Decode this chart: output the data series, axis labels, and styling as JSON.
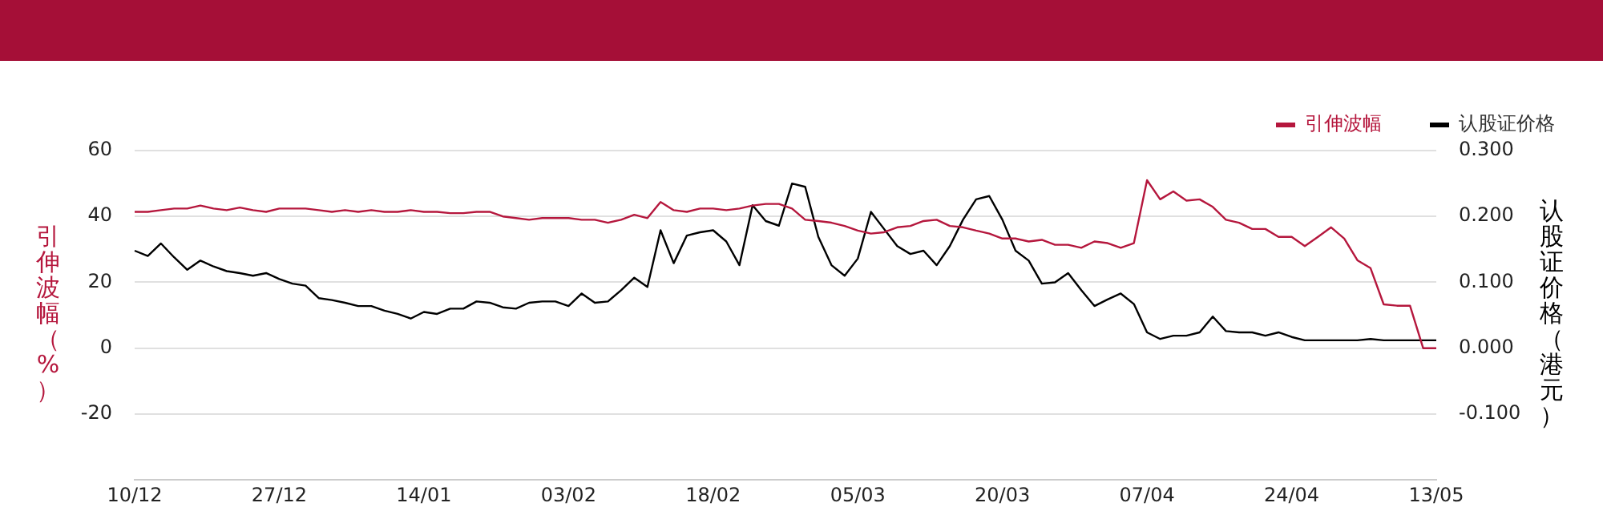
{
  "chart_data": {
    "type": "line",
    "categories": [
      "10/12",
      null,
      null,
      null,
      null,
      null,
      null,
      null,
      null,
      null,
      null,
      "27/12",
      null,
      null,
      null,
      null,
      null,
      null,
      null,
      null,
      null,
      null,
      "14/01",
      null,
      null,
      null,
      null,
      null,
      null,
      null,
      null,
      null,
      null,
      "03/02",
      null,
      null,
      null,
      null,
      null,
      null,
      null,
      null,
      null,
      null,
      "18/02",
      null,
      null,
      null,
      null,
      null,
      null,
      null,
      null,
      null,
      null,
      "05/03",
      null,
      null,
      null,
      null,
      null,
      null,
      null,
      null,
      null,
      null,
      "20/03",
      null,
      null,
      null,
      null,
      null,
      null,
      null,
      null,
      null,
      null,
      "07/04",
      null,
      null,
      null,
      null,
      null,
      null,
      null,
      null,
      null,
      null,
      "24/04",
      null,
      null,
      null,
      null,
      null,
      null,
      null,
      null,
      null,
      null,
      "13/05"
    ],
    "series": [
      {
        "name": "引伸波幅",
        "color": "#b5173d",
        "values": [
          41.4,
          41.4,
          41.9,
          42.4,
          42.4,
          43.3,
          42.4,
          41.9,
          42.7,
          41.9,
          41.4,
          42.4,
          42.4,
          42.4,
          41.9,
          41.4,
          41.9,
          41.4,
          41.9,
          41.4,
          41.4,
          41.9,
          41.4,
          41.4,
          41,
          41,
          41.4,
          41.4,
          40,
          39.5,
          39,
          39.5,
          39.5,
          39.5,
          39,
          39,
          38.1,
          39,
          40.5,
          39.5,
          44.4,
          41.9,
          41.4,
          42.4,
          42.4,
          41.9,
          42.4,
          43.3,
          43.8,
          43.8,
          42.4,
          39,
          38.6,
          38.1,
          37.1,
          35.7,
          34.8,
          35.2,
          36.7,
          37.1,
          38.6,
          39,
          37.1,
          36.7,
          35.7,
          34.8,
          33.3,
          33.3,
          32.4,
          32.9,
          31.4,
          31.4,
          30.5,
          32.4,
          31.9,
          30.5,
          31.9,
          51,
          45.2,
          47.6,
          44.8,
          45.2,
          42.9,
          39,
          38.1,
          36.2,
          36.2,
          33.8,
          33.8,
          31,
          33.8,
          36.7,
          33.3,
          26.7,
          24.3,
          13.3,
          12.9,
          12.9,
          0,
          0
        ]
      },
      {
        "name": "认股证价格",
        "color": "#000000",
        "axis": "y2",
        "values": [
          0.148,
          0.14,
          0.159,
          0.138,
          0.119,
          0.133,
          0.124,
          0.117,
          0.114,
          0.11,
          0.114,
          0.105,
          0.098,
          0.095,
          0.076,
          0.073,
          0.069,
          0.064,
          0.064,
          0.057,
          0.052,
          0.045,
          0.055,
          0.052,
          0.06,
          0.06,
          0.071,
          0.069,
          0.062,
          0.06,
          0.069,
          0.071,
          0.071,
          0.064,
          0.083,
          0.069,
          0.071,
          0.088,
          0.107,
          0.093,
          0.179,
          0.129,
          0.171,
          0.176,
          0.179,
          0.162,
          0.126,
          0.217,
          0.193,
          0.186,
          0.25,
          0.245,
          0.169,
          0.126,
          0.11,
          0.136,
          0.207,
          0.181,
          0.155,
          0.143,
          0.148,
          0.126,
          0.155,
          0.195,
          0.226,
          0.231,
          0.195,
          0.148,
          0.133,
          0.098,
          0.1,
          0.114,
          0.088,
          0.064,
          0.074,
          0.083,
          0.067,
          0.024,
          0.014,
          0.019,
          0.019,
          0.024,
          0.048,
          0.026,
          0.024,
          0.024,
          0.019,
          0.024,
          0.017,
          0.012,
          0.012,
          0.012,
          0.012,
          0.012,
          0.014,
          0.012,
          0.012,
          0.012,
          0.012,
          0.012
        ]
      }
    ],
    "ylabel": "引伸波幅（%）",
    "y2label": "认股证价格（港元）",
    "ylim": [
      -40,
      60
    ],
    "yticks": [
      60,
      40,
      20,
      0,
      -20
    ],
    "y2lim": [
      -0.2,
      0.3
    ],
    "y2ticks": [
      {
        "value": 0.3,
        "label": "0.300"
      },
      {
        "value": 0.2,
        "label": "0.200"
      },
      {
        "value": 0.1,
        "label": "0.100"
      },
      {
        "value": 0,
        "label": "0.000"
      },
      {
        "value": -0.1,
        "label": "-0.100"
      }
    ],
    "grid": "y",
    "legend": "top right",
    "marker": "none",
    "line_style": "solid"
  }
}
